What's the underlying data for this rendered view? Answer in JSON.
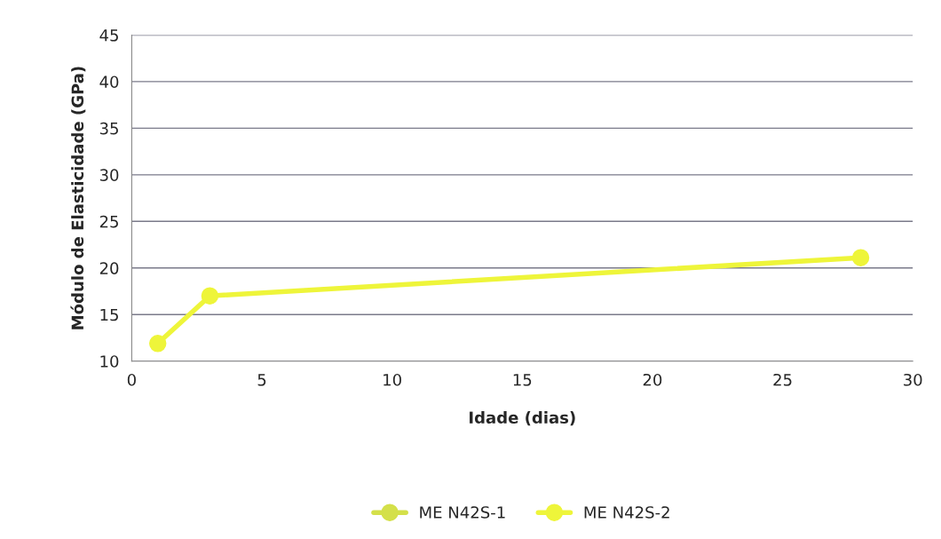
{
  "chart_data": {
    "type": "line",
    "xlabel": "Idade (dias)",
    "ylabel": "Módulo de Elasticidade (GPa)",
    "x": [
      1,
      3,
      28
    ],
    "series": [
      {
        "name": "ME N42S-1",
        "color": "#d4e04a",
        "values": [
          null,
          null,
          null
        ]
      },
      {
        "name": "ME N42S-2",
        "color": "#eef53a",
        "values": [
          11.9,
          17.0,
          21.1
        ]
      }
    ],
    "xlim": [
      0,
      30
    ],
    "xticks": [
      0,
      5,
      10,
      15,
      20,
      25,
      30
    ],
    "ylim": [
      10,
      45
    ],
    "yticks": [
      10,
      15,
      20,
      25,
      30,
      35,
      40,
      45
    ],
    "grid": "y",
    "legend": "bottom",
    "marker": "circle",
    "line_style": "solid"
  }
}
